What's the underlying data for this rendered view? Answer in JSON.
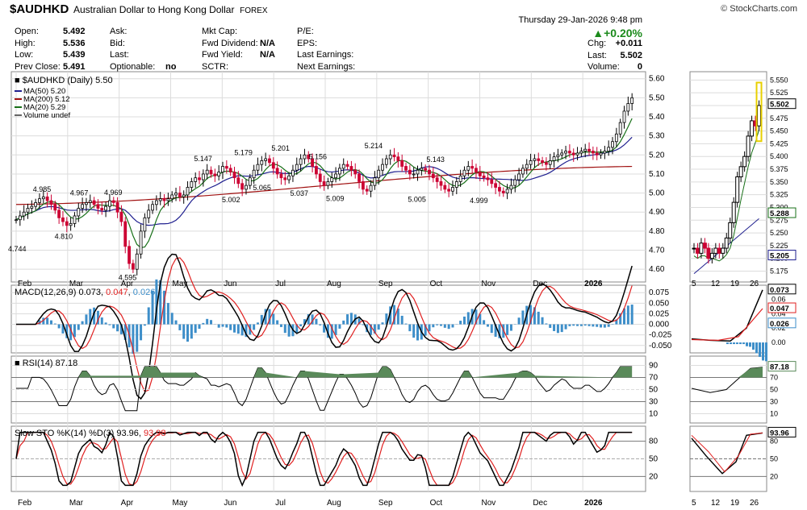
{
  "header": {
    "symbol": "$AUDHKD",
    "description": "Australian Dollar to Hong Kong Dollar",
    "exchange": "FOREX",
    "brand": "© StockCharts.com",
    "datetime": "Thursday  29-Jan-2026  9:48 pm",
    "change_pct": "+0.20%",
    "fields": [
      {
        "label": "Open:",
        "value": "5.492"
      },
      {
        "label": "High:",
        "value": "5.536"
      },
      {
        "label": "Low:",
        "value": "5.439"
      },
      {
        "label": "Prev Close:",
        "value": "5.491"
      },
      {
        "label": "Ask:",
        "value": ""
      },
      {
        "label": "Bid:",
        "value": ""
      },
      {
        "label": "Last:",
        "value": ""
      },
      {
        "label": "Optionable:",
        "value": "no"
      },
      {
        "label": "Mkt Cap:",
        "value": ""
      },
      {
        "label": "Fwd Dividend:",
        "value": "N/A"
      },
      {
        "label": "Fwd Yield:",
        "value": "N/A"
      },
      {
        "label": "SCTR:",
        "value": ""
      },
      {
        "label": "P/E:",
        "value": ""
      },
      {
        "label": "EPS:",
        "value": ""
      },
      {
        "label": "Last Earnings:",
        "value": ""
      },
      {
        "label": "Next Earnings:",
        "value": ""
      },
      {
        "label": "Chg:",
        "value": "+0.011"
      },
      {
        "label": "Last:",
        "value": "5.502"
      },
      {
        "label": "Volume:",
        "value": "0"
      }
    ]
  },
  "colors": {
    "up": "#000000",
    "down": "#cc0033",
    "ma50": "#1f1f8f",
    "ma200": "#a01010",
    "ma20": "#187018",
    "macd_hist": "#3d8ec9",
    "macd_signal": "#e02020",
    "rsi_fill": "#5a8a5a",
    "grid": "#dcdcdc"
  },
  "chart_data": [
    {
      "type": "candlestick",
      "title": "$AUDHKD (Daily) 5.50",
      "legend": [
        "MA(50) 5.20",
        "MA(200) 5.12",
        "MA(20) 5.29",
        "Volume undef"
      ],
      "x_labels": [
        "Feb",
        "Mar",
        "Apr",
        "May",
        "Jun",
        "Jul",
        "Aug",
        "Sep",
        "Oct",
        "Nov",
        "Dec",
        "2026"
      ],
      "y_ticks": [
        "5.60",
        "5.50",
        "5.40",
        "5.30",
        "5.20",
        "5.10",
        "5.00",
        "4.90",
        "4.80",
        "4.70",
        "4.60"
      ],
      "ylim": [
        4.55,
        5.62
      ],
      "close_series": [
        4.86,
        4.88,
        4.9,
        4.92,
        4.93,
        4.95,
        4.97,
        4.98,
        4.96,
        4.94,
        4.91,
        4.87,
        4.85,
        4.83,
        4.84,
        4.88,
        4.92,
        4.94,
        4.95,
        4.96,
        4.94,
        4.92,
        4.91,
        4.93,
        4.96,
        4.95,
        4.9,
        4.85,
        4.72,
        4.63,
        4.6,
        4.68,
        4.8,
        4.87,
        4.91,
        4.94,
        4.96,
        4.97,
        4.96,
        4.97,
        4.99,
        5.0,
        4.98,
        4.99,
        5.03,
        5.06,
        5.08,
        5.07,
        5.1,
        5.12,
        5.1,
        5.09,
        5.11,
        5.14,
        5.13,
        5.11,
        5.08,
        5.05,
        5.02,
        5.04,
        5.08,
        5.12,
        5.15,
        5.17,
        5.18,
        5.16,
        5.13,
        5.1,
        5.08,
        5.07,
        5.09,
        5.12,
        5.15,
        5.18,
        5.2,
        5.18,
        5.14,
        5.1,
        5.06,
        5.04,
        5.06,
        5.08,
        5.1,
        5.13,
        5.15,
        5.14,
        5.12,
        5.1,
        5.06,
        5.02,
        5.01,
        5.04,
        5.08,
        5.12,
        5.15,
        5.18,
        5.2,
        5.19,
        5.17,
        5.14,
        5.12,
        5.1,
        5.1,
        5.12,
        5.13,
        5.12,
        5.1,
        5.08,
        5.06,
        5.04,
        5.02,
        5.01,
        5.03,
        5.06,
        5.09,
        5.12,
        5.14,
        5.13,
        5.11,
        5.09,
        5.08,
        5.07,
        5.05,
        5.03,
        5.01,
        5.0,
        5.02,
        5.04,
        5.07,
        5.1,
        5.13,
        5.15,
        5.17,
        5.18,
        5.17,
        5.16,
        5.15,
        5.17,
        5.19,
        5.2,
        5.21,
        5.22,
        5.21,
        5.2,
        5.21,
        5.22,
        5.23,
        5.22,
        5.21,
        5.2,
        5.21,
        5.22,
        5.24,
        5.27,
        5.31,
        5.37,
        5.43,
        5.47,
        5.5
      ],
      "annotations": [
        {
          "label": "4.744",
          "x_frac": 0.0,
          "value": 4.744
        },
        {
          "label": "4.985",
          "x_frac": 0.04,
          "value": 4.985
        },
        {
          "label": "4.810",
          "x_frac": 0.075,
          "value": 4.81
        },
        {
          "label": "4.967",
          "x_frac": 0.1,
          "value": 4.967
        },
        {
          "label": "4.969",
          "x_frac": 0.155,
          "value": 4.969
        },
        {
          "label": "4.595",
          "x_frac": 0.178,
          "value": 4.595
        },
        {
          "label": "5.147",
          "x_frac": 0.3,
          "value": 5.147
        },
        {
          "label": "5.002",
          "x_frac": 0.345,
          "value": 5.002
        },
        {
          "label": "5.179",
          "x_frac": 0.365,
          "value": 5.179
        },
        {
          "label": "5.065",
          "x_frac": 0.395,
          "value": 5.065
        },
        {
          "label": "5.201",
          "x_frac": 0.425,
          "value": 5.201
        },
        {
          "label": "5.037",
          "x_frac": 0.455,
          "value": 5.037
        },
        {
          "label": "5.156",
          "x_frac": 0.485,
          "value": 5.156
        },
        {
          "label": "5.009",
          "x_frac": 0.513,
          "value": 5.009
        },
        {
          "label": "5.214",
          "x_frac": 0.575,
          "value": 5.214
        },
        {
          "label": "5.143",
          "x_frac": 0.675,
          "value": 5.143
        },
        {
          "label": "5.005",
          "x_frac": 0.645,
          "value": 5.005
        },
        {
          "label": "4.999",
          "x_frac": 0.745,
          "value": 4.999
        }
      ]
    },
    {
      "type": "line",
      "title": "MACD(12,26,9)",
      "values": [
        "0.073",
        "0.047",
        "0.026"
      ],
      "y_ticks": [
        "0.075",
        "0.050",
        "0.025",
        "0.000",
        "-0.025",
        "-0.050"
      ],
      "ylim": [
        -0.06,
        0.085
      ]
    },
    {
      "type": "line",
      "title": "RSI(14)",
      "values": [
        "87.18"
      ],
      "y_ticks": [
        "90",
        "70",
        "50",
        "30",
        "10"
      ],
      "ylim": [
        0,
        100
      ]
    },
    {
      "type": "line",
      "title": "Slow STO %K(14) %D(3)",
      "values": [
        "93.96",
        "93.98"
      ],
      "y_ticks": [
        "80",
        "50",
        "20"
      ],
      "ylim": [
        0,
        100
      ]
    },
    {
      "type": "candlestick",
      "title": "mini",
      "x_labels": [
        "5",
        "12",
        "19",
        "26"
      ],
      "y_ticks": [
        "5.550",
        "5.525",
        "5.500",
        "5.475",
        "5.450",
        "5.425",
        "5.400",
        "5.375",
        "5.350",
        "5.325",
        "5.300",
        "5.275",
        "5.250",
        "5.225",
        "5.200",
        "5.175"
      ],
      "ylim": [
        5.16,
        5.56
      ],
      "last_badges": [
        "5.502",
        "5.288",
        "5.205"
      ],
      "macd_badges": [
        "0.073",
        "0.047",
        "0.026"
      ],
      "macd_ticks": [
        "0.06",
        "0.04",
        "0.02",
        "0.00"
      ],
      "rsi_badge": "87.18",
      "rsi_ticks": [
        "90",
        "70",
        "50",
        "30",
        "10"
      ],
      "sto_badges": [
        "93.96",
        "93.98"
      ],
      "sto_ticks": [
        "80",
        "50",
        "20"
      ],
      "closes": [
        5.22,
        5.21,
        5.23,
        5.22,
        5.2,
        5.21,
        5.22,
        5.21,
        5.22,
        5.24,
        5.27,
        5.31,
        5.36,
        5.38,
        5.4,
        5.44,
        5.47,
        5.46,
        5.5
      ]
    }
  ]
}
